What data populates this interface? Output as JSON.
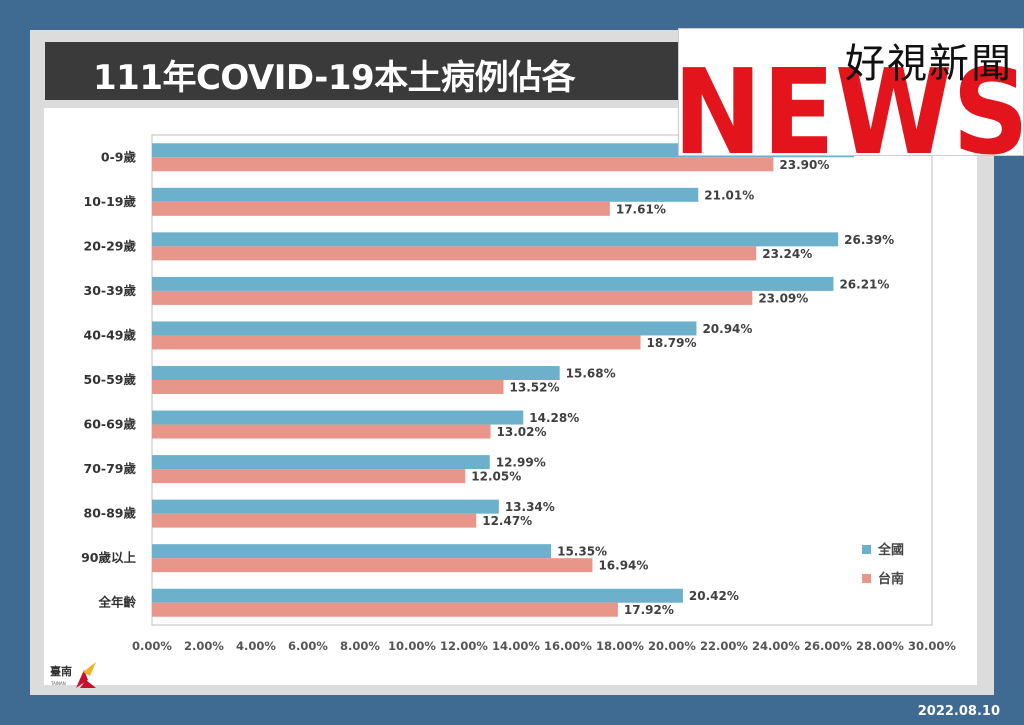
{
  "title": "111年COVID-19本土病例佔各",
  "watermark": {
    "channel": "好視新聞",
    "brand": "NEWS",
    "brand_color": "#e3141b"
  },
  "footer": {
    "date": "2022.08.10",
    "logo_text": "臺南",
    "logo_subtext": "TAINAN"
  },
  "colors": {
    "national": "#6cb0cc",
    "tainan": "#e8968a",
    "frame": "#3f6a91"
  },
  "chart_data": {
    "type": "bar",
    "orientation": "horizontal",
    "title": "111年COVID-19本土病例佔各",
    "categories": [
      "0-9歲",
      "10-19歲",
      "20-29歲",
      "30-39歲",
      "40-49歲",
      "50-59歲",
      "60-69歲",
      "70-79歲",
      "80-89歲",
      "90歲以上",
      "全年齡"
    ],
    "series": [
      {
        "name": "全國",
        "values": [
          27.0,
          21.01,
          26.39,
          26.21,
          20.94,
          15.68,
          14.28,
          12.99,
          13.34,
          15.35,
          20.42
        ],
        "labels": [
          "",
          "21.01%",
          "26.39%",
          "26.21%",
          "20.94%",
          "15.68%",
          "14.28%",
          "12.99%",
          "13.34%",
          "15.35%",
          "20.42%"
        ]
      },
      {
        "name": "台南",
        "values": [
          23.9,
          17.61,
          23.24,
          23.09,
          18.79,
          13.52,
          13.02,
          12.05,
          12.47,
          16.94,
          17.92
        ],
        "labels": [
          "23.90%",
          "17.61%",
          "23.24%",
          "23.09%",
          "18.79%",
          "13.52%",
          "13.02%",
          "12.05%",
          "12.47%",
          "16.94%",
          "17.92%"
        ]
      }
    ],
    "xlim": [
      0,
      30
    ],
    "xticks": [
      0,
      2,
      4,
      6,
      8,
      10,
      12,
      14,
      16,
      18,
      20,
      22,
      24,
      26,
      28,
      30
    ],
    "xtick_labels": [
      "0.00%",
      "2.00%",
      "4.00%",
      "6.00%",
      "8.00%",
      "10.00%",
      "12.00%",
      "14.00%",
      "16.00%",
      "18.00%",
      "20.00%",
      "22.00%",
      "24.00%",
      "26.00%",
      "28.00%",
      "30.00%"
    ],
    "grid": false,
    "legend": "right"
  }
}
